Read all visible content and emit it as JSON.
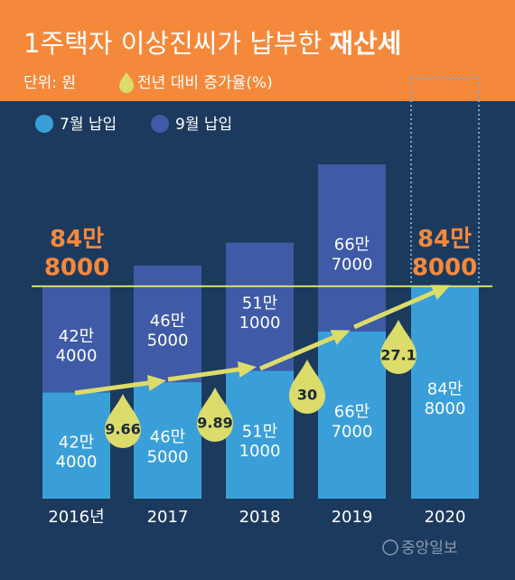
{
  "chart_data": {
    "type": "stacked-bar",
    "title": "1주택자 이상진씨가 납부한",
    "title_emphasis": "재산세",
    "unit": "단위: 원",
    "growth_legend": "전년 대비 증가율(%)",
    "categories": [
      "2016년",
      "2017",
      "2018",
      "2019",
      "2020"
    ],
    "series": [
      {
        "name": "7월 납입",
        "color": "#3a9fd9",
        "values": [
          424000,
          465000,
          511000,
          667000,
          848000
        ],
        "value_labels": [
          [
            "42만",
            "4000"
          ],
          [
            "46만",
            "5000"
          ],
          [
            "51만",
            "1000"
          ],
          [
            "66만",
            "7000"
          ],
          [
            "84만",
            "8000"
          ]
        ]
      },
      {
        "name": "9월 납입",
        "color": "#3f5aa6",
        "values": [
          424000,
          465000,
          511000,
          667000,
          null
        ],
        "value_labels": [
          [
            "42만",
            "4000"
          ],
          [
            "46만",
            "5000"
          ],
          [
            "51만",
            "1000"
          ],
          [
            "66만",
            "7000"
          ],
          null
        ]
      }
    ],
    "growth": {
      "color": "#dcdc6a",
      "values": [
        null,
        9.66,
        9.89,
        30,
        27.1
      ]
    },
    "reference": {
      "value": 848000,
      "label": [
        "84만",
        "8000"
      ],
      "color": "#f5893b"
    },
    "ylim": [
      0,
      1500000
    ],
    "source": "중앙일보"
  }
}
